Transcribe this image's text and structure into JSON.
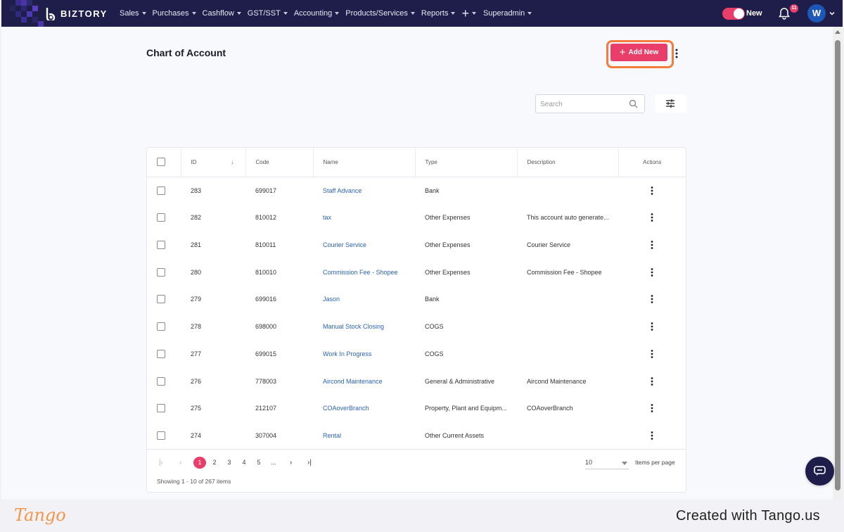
{
  "nav": {
    "brand": "BIZTORY",
    "menu": [
      "Sales",
      "Purchases",
      "Cashflow",
      "GST/SST",
      "Accounting",
      "Products/Services",
      "Reports"
    ],
    "plus_label": "+",
    "admin_label": "Superadmin",
    "toggle_label": "New",
    "notification_count": "11",
    "avatar_initial": "W",
    "accent_color": "#e83e69",
    "bar_color": "#1f1d4a"
  },
  "page": {
    "title": "Chart of Account",
    "add_button_label": "Add New",
    "search_placeholder": "Search"
  },
  "table": {
    "headers": {
      "id": "ID",
      "code": "Code",
      "name": "Name",
      "type": "Type",
      "description": "Description",
      "actions": "Actions"
    },
    "rows": [
      {
        "id": "283",
        "code": "699017",
        "name": "Staff Advance",
        "type": "Bank",
        "description": ""
      },
      {
        "id": "282",
        "code": "810012",
        "name": "tax",
        "type": "Other Expenses",
        "description": "This account auto generate..."
      },
      {
        "id": "281",
        "code": "810011",
        "name": "Courier Service",
        "type": "Other Expenses",
        "description": "Courier Service"
      },
      {
        "id": "280",
        "code": "810010",
        "name": "Commission Fee - Shopee",
        "type": "Other Expenses",
        "description": "Commission Fee - Shopee"
      },
      {
        "id": "279",
        "code": "699016",
        "name": "Jason",
        "type": "Bank",
        "description": ""
      },
      {
        "id": "278",
        "code": "698000",
        "name": "Manual Stock Closing",
        "type": "COGS",
        "description": ""
      },
      {
        "id": "277",
        "code": "699015",
        "name": "Work In Progress",
        "type": "COGS",
        "description": ""
      },
      {
        "id": "276",
        "code": "778003",
        "name": "Aircond Maintenance",
        "type": "General & Administrative",
        "description": "Aircond Maintenance"
      },
      {
        "id": "275",
        "code": "212107",
        "name": "COAoverBranch",
        "type": "Property, Plant and Equipm...",
        "description": "COAoverBranch"
      },
      {
        "id": "274",
        "code": "307004",
        "name": "Rental",
        "type": "Other Current Assets",
        "description": ""
      }
    ]
  },
  "pagination": {
    "pages": [
      "1",
      "2",
      "3",
      "4",
      "5",
      "..."
    ],
    "current_page": "1",
    "page_size": "10",
    "items_per_page_label": "Items per page",
    "showing_text": "Showing 1 - 10 of 267 items"
  },
  "footer": {
    "logo_text": "Tango",
    "created_text": "Created with Tango.us"
  }
}
